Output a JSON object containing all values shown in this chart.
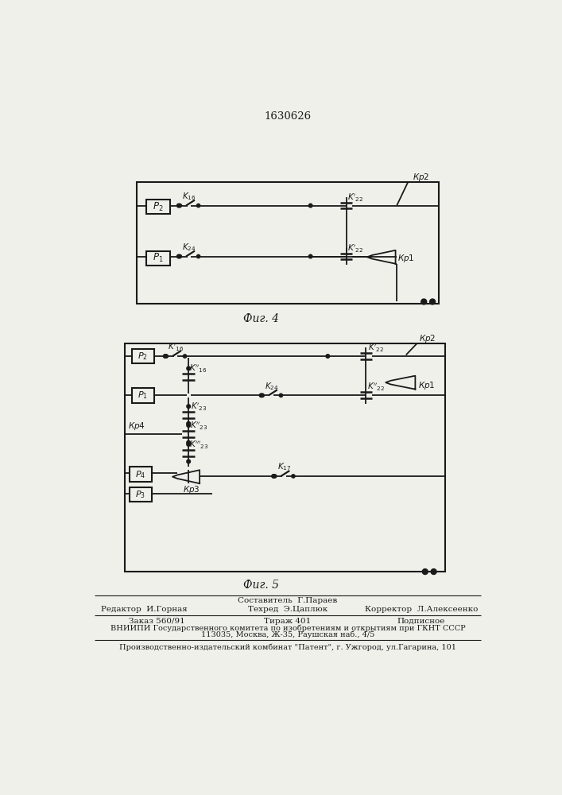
{
  "title": "1630626",
  "fig4_label": "Фиг. 4",
  "fig5_label": "Фиг. 5",
  "bg": "#f0f0eb",
  "lc": "#1a1a1a",
  "footer": {
    "sostavitel": "Составитель  Г.Параев",
    "redaktor": "Редактор  И.Горная",
    "tehred": "Техред  Э.Цаплюк",
    "korrektor": "Корректор  Л.Алексеенко",
    "zakaz": "Заказ 560/91",
    "tirazh": "Тираж 401",
    "podpisnoe": "Подписное",
    "vniipи1": "ВНИИПИ Государственного комитета по изобретениям и открытиям при ГКНТ СССР",
    "vniipи2": "113035, Москва, Ж-35, Раушская наб., 4/5",
    "publisher": "Производственно-издательский комбинат \"Патент\", г. Ужгород, ул.Гагарина, 101"
  }
}
